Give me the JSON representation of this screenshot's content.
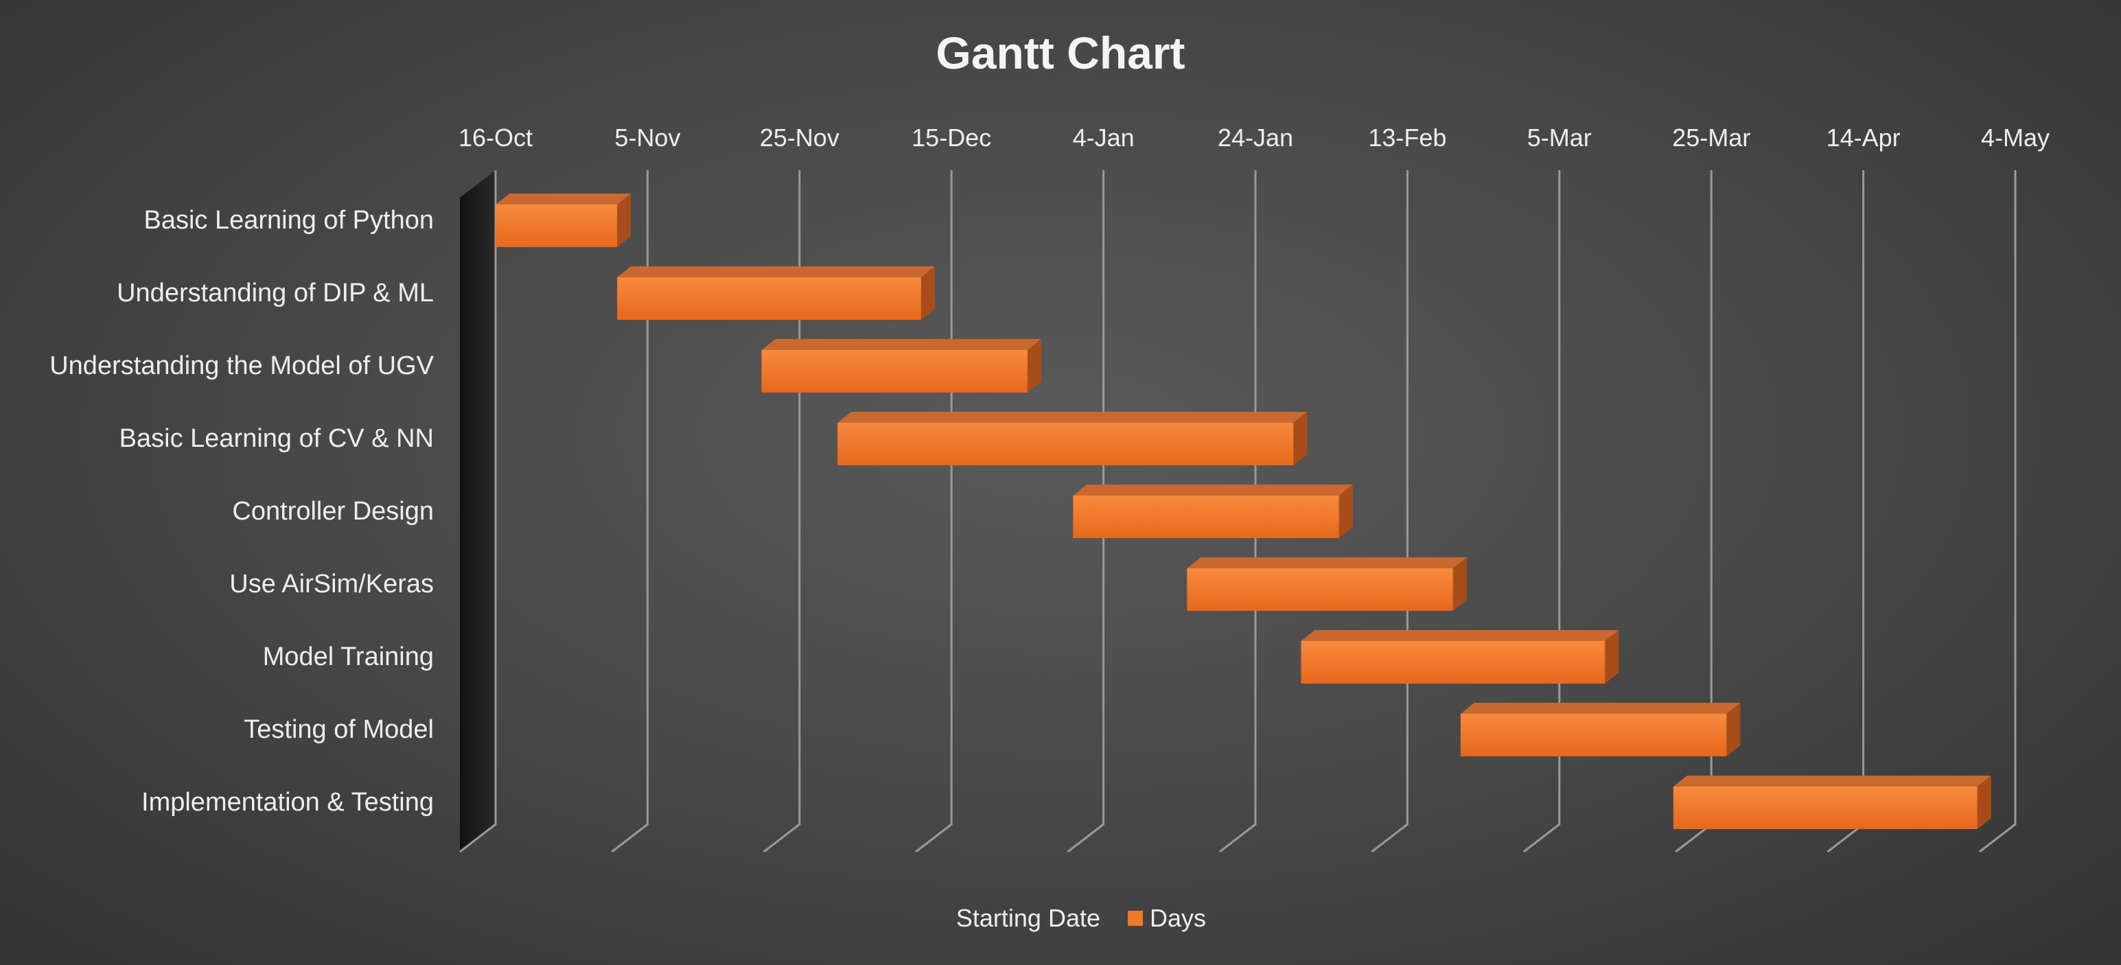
{
  "chart_data": {
    "type": "bar",
    "orientation": "horizontal",
    "stacked": true,
    "title": "Gantt Chart",
    "categories": [
      "Basic Learning of Python",
      "Understanding of DIP & ML",
      "Understanding the Model of UGV",
      "Basic Learning of CV & NN",
      "Controller Design",
      "Use AirSim/Keras",
      "Model Training",
      "Testing of Model",
      "Implementation & Testing"
    ],
    "series": [
      {
        "name": "Starting Date",
        "values": [
          "2017-10-16",
          "2017-11-01",
          "2017-11-20",
          "2017-11-30",
          "2017-12-31",
          "2018-01-15",
          "2018-01-30",
          "2018-02-20",
          "2018-03-20"
        ],
        "visible": false
      },
      {
        "name": "Days",
        "values": [
          16,
          40,
          35,
          60,
          35,
          35,
          40,
          35,
          40
        ],
        "color": "#f0782a"
      }
    ],
    "x_ticks": [
      "16-Oct",
      "5-Nov",
      "25-Nov",
      "15-Dec",
      "4-Jan",
      "24-Jan",
      "13-Feb",
      "5-Mar",
      "25-Mar",
      "14-Apr",
      "4-May"
    ],
    "xlim": [
      "2017-10-16",
      "2018-05-04"
    ],
    "x_axis_position": "top",
    "y_axis_reversed": true,
    "grid": true,
    "legend": "bottom",
    "colors": {
      "bar_front": "#f0782a",
      "bar_top": "#c9692f",
      "bar_side": "#a84d1a",
      "text": "#eeeeee",
      "gridline": "#9a9a9a",
      "wall": "#1c1c1c"
    }
  }
}
